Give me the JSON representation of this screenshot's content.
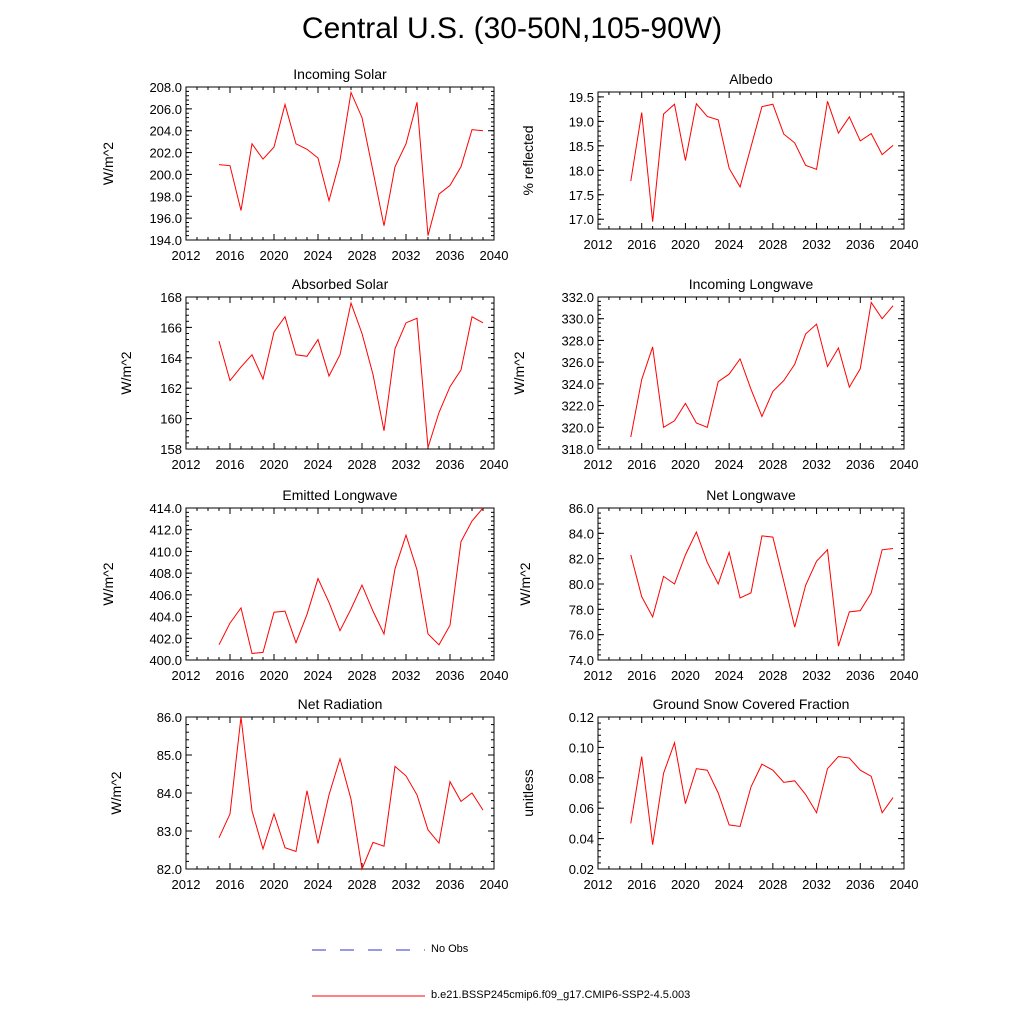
{
  "page": {
    "title": "Central U.S. (30-50N,105-90W)"
  },
  "colors": {
    "model": "#ff0000",
    "obs": "#3333cc",
    "axes": "#000000"
  },
  "legend": {
    "items": [
      {
        "label": "No Obs",
        "color": "#3333cc",
        "style": "dashed"
      },
      {
        "label": "b.e21.BSSP245cmip6.f09_g17.CMIP6-SSP2-4.5.003",
        "color": "#ff0000",
        "style": "solid"
      }
    ]
  },
  "chart_data": [
    {
      "type": "line",
      "title": "Incoming Solar",
      "xlabel": "",
      "ylabel": "W/m^2",
      "xlim": [
        2012,
        2040
      ],
      "ylim": [
        194,
        208
      ],
      "xticks": [
        2012,
        2016,
        2020,
        2024,
        2028,
        2032,
        2036,
        2040
      ],
      "yticks": [
        "194.0",
        "196.0",
        "198.0",
        "200.0",
        "202.0",
        "204.0",
        "206.0",
        "208.0"
      ],
      "x": [
        2015,
        2016,
        2017,
        2018,
        2019,
        2020,
        2021,
        2022,
        2023,
        2024,
        2025,
        2026,
        2027,
        2028,
        2029,
        2030,
        2031,
        2032,
        2033,
        2034,
        2035,
        2036,
        2037,
        2038,
        2039
      ],
      "series": [
        {
          "name": "b.e21.BSSP245cmip6.f09_g17.CMIP6-SSP2-4.5.003",
          "values": [
            200.9,
            200.8,
            196.7,
            202.8,
            201.4,
            202.5,
            206.4,
            202.8,
            202.3,
            201.5,
            197.6,
            201.3,
            207.5,
            205.2,
            200.3,
            195.3,
            200.7,
            202.8,
            206.6,
            194.4,
            198.2,
            199.0,
            200.7,
            204.1,
            204.0
          ]
        }
      ]
    },
    {
      "type": "line",
      "title": "Albedo",
      "xlabel": "",
      "ylabel": "% reflected",
      "xlim": [
        2012,
        2040
      ],
      "ylim": [
        16.8,
        19.6
      ],
      "xticks": [
        2012,
        2016,
        2020,
        2024,
        2028,
        2032,
        2036,
        2040
      ],
      "yticks": [
        "17.0",
        "17.5",
        "18.0",
        "18.5",
        "19.0",
        "19.5"
      ],
      "x": [
        2015,
        2016,
        2017,
        2018,
        2019,
        2020,
        2021,
        2022,
        2023,
        2024,
        2025,
        2026,
        2027,
        2028,
        2029,
        2030,
        2031,
        2032,
        2033,
        2034,
        2035,
        2036,
        2037,
        2038,
        2039
      ],
      "series": [
        {
          "name": "b.e21.BSSP245cmip6.f09_g17.CMIP6-SSP2-4.5.003",
          "values": [
            17.78,
            19.18,
            16.95,
            19.15,
            19.35,
            18.2,
            19.36,
            19.1,
            19.03,
            18.04,
            17.66,
            18.48,
            19.3,
            19.35,
            18.74,
            18.56,
            18.1,
            18.02,
            19.41,
            18.76,
            19.09,
            18.6,
            18.75,
            18.32,
            18.51
          ]
        }
      ]
    },
    {
      "type": "line",
      "title": "Absorbed Solar",
      "xlabel": "",
      "ylabel": "W/m^2",
      "xlim": [
        2012,
        2040
      ],
      "ylim": [
        158,
        168
      ],
      "xticks": [
        2012,
        2016,
        2020,
        2024,
        2028,
        2032,
        2036,
        2040
      ],
      "yticks": [
        "158",
        "160",
        "162",
        "164",
        "166",
        "168"
      ],
      "x": [
        2015,
        2016,
        2017,
        2018,
        2019,
        2020,
        2021,
        2022,
        2023,
        2024,
        2025,
        2026,
        2027,
        2028,
        2029,
        2030,
        2031,
        2032,
        2033,
        2034,
        2035,
        2036,
        2037,
        2038,
        2039
      ],
      "series": [
        {
          "name": "b.e21.BSSP245cmip6.f09_g17.CMIP6-SSP2-4.5.003",
          "values": [
            165.1,
            162.5,
            163.4,
            164.2,
            162.6,
            165.7,
            166.7,
            164.2,
            164.1,
            165.2,
            162.8,
            164.2,
            167.6,
            165.6,
            162.9,
            159.2,
            164.6,
            166.3,
            166.6,
            158.1,
            160.4,
            162.1,
            163.2,
            166.7,
            166.3
          ]
        }
      ]
    },
    {
      "type": "line",
      "title": "Incoming Longwave",
      "xlabel": "",
      "ylabel": "W/m^2",
      "xlim": [
        2012,
        2040
      ],
      "ylim": [
        318,
        332
      ],
      "xticks": [
        2012,
        2016,
        2020,
        2024,
        2028,
        2032,
        2036,
        2040
      ],
      "yticks": [
        "318.0",
        "320.0",
        "322.0",
        "324.0",
        "326.0",
        "328.0",
        "330.0",
        "332.0"
      ],
      "x": [
        2015,
        2016,
        2017,
        2018,
        2019,
        2020,
        2021,
        2022,
        2023,
        2024,
        2025,
        2026,
        2027,
        2028,
        2029,
        2030,
        2031,
        2032,
        2033,
        2034,
        2035,
        2036,
        2037,
        2038,
        2039
      ],
      "series": [
        {
          "name": "b.e21.BSSP245cmip6.f09_g17.CMIP6-SSP2-4.5.003",
          "values": [
            319.1,
            324.4,
            327.4,
            320.0,
            320.6,
            322.2,
            320.4,
            320.0,
            324.2,
            324.9,
            326.3,
            323.5,
            321.0,
            323.3,
            324.3,
            325.8,
            328.6,
            329.5,
            325.6,
            327.3,
            323.7,
            325.4,
            331.5,
            330.0,
            331.2
          ]
        }
      ]
    },
    {
      "type": "line",
      "title": "Emitted Longwave",
      "xlabel": "",
      "ylabel": "W/m^2",
      "xlim": [
        2012,
        2040
      ],
      "ylim": [
        400,
        414
      ],
      "xticks": [
        2012,
        2016,
        2020,
        2024,
        2028,
        2032,
        2036,
        2040
      ],
      "yticks": [
        "400.0",
        "402.0",
        "404.0",
        "406.0",
        "408.0",
        "410.0",
        "412.0",
        "414.0"
      ],
      "x": [
        2015,
        2016,
        2017,
        2018,
        2019,
        2020,
        2021,
        2022,
        2023,
        2024,
        2025,
        2026,
        2027,
        2028,
        2029,
        2030,
        2031,
        2032,
        2033,
        2034,
        2035,
        2036,
        2037,
        2038,
        2039
      ],
      "series": [
        {
          "name": "b.e21.BSSP245cmip6.f09_g17.CMIP6-SSP2-4.5.003",
          "values": [
            401.4,
            403.4,
            404.8,
            400.6,
            400.7,
            404.4,
            404.5,
            401.6,
            404.2,
            407.5,
            405.3,
            402.7,
            404.7,
            406.9,
            404.5,
            402.4,
            408.4,
            411.5,
            408.3,
            402.4,
            401.4,
            403.2,
            410.9,
            412.8,
            414.0
          ]
        }
      ]
    },
    {
      "type": "line",
      "title": "Net Longwave",
      "xlabel": "",
      "ylabel": "W/m^2",
      "xlim": [
        2012,
        2040
      ],
      "ylim": [
        74,
        86
      ],
      "xticks": [
        2012,
        2016,
        2020,
        2024,
        2028,
        2032,
        2036,
        2040
      ],
      "yticks": [
        "74.0",
        "76.0",
        "78.0",
        "80.0",
        "82.0",
        "84.0",
        "86.0"
      ],
      "x": [
        2015,
        2016,
        2017,
        2018,
        2019,
        2020,
        2021,
        2022,
        2023,
        2024,
        2025,
        2026,
        2027,
        2028,
        2029,
        2030,
        2031,
        2032,
        2033,
        2034,
        2035,
        2036,
        2037,
        2038,
        2039
      ],
      "series": [
        {
          "name": "b.e21.BSSP245cmip6.f09_g17.CMIP6-SSP2-4.5.003",
          "values": [
            82.3,
            79.0,
            77.4,
            80.6,
            80.0,
            82.3,
            84.1,
            81.7,
            80.0,
            82.5,
            78.9,
            79.3,
            83.8,
            83.7,
            80.2,
            76.6,
            79.9,
            81.8,
            82.7,
            75.1,
            77.8,
            77.9,
            79.3,
            82.7,
            82.8
          ]
        }
      ]
    },
    {
      "type": "line",
      "title": "Net Radiation",
      "xlabel": "",
      "ylabel": "W/m^2",
      "xlim": [
        2012,
        2040
      ],
      "ylim": [
        82,
        86
      ],
      "xticks": [
        2012,
        2016,
        2020,
        2024,
        2028,
        2032,
        2036,
        2040
      ],
      "yticks": [
        "82.0",
        "83.0",
        "84.0",
        "85.0",
        "86.0"
      ],
      "x": [
        2015,
        2016,
        2017,
        2018,
        2019,
        2020,
        2021,
        2022,
        2023,
        2024,
        2025,
        2026,
        2027,
        2028,
        2029,
        2030,
        2031,
        2032,
        2033,
        2034,
        2035,
        2036,
        2037,
        2038,
        2039
      ],
      "series": [
        {
          "name": "b.e21.BSSP245cmip6.f09_g17.CMIP6-SSP2-4.5.003",
          "values": [
            82.82,
            83.45,
            86.0,
            83.53,
            82.53,
            83.45,
            82.56,
            82.46,
            84.06,
            82.67,
            83.95,
            84.9,
            83.84,
            82.0,
            82.7,
            82.6,
            84.7,
            84.45,
            83.95,
            83.03,
            82.68,
            84.3,
            83.78,
            84.0,
            83.55
          ]
        }
      ]
    },
    {
      "type": "line",
      "title": "Ground Snow Covered Fraction",
      "xlabel": "",
      "ylabel": "unitless",
      "xlim": [
        2012,
        2040
      ],
      "ylim": [
        0.02,
        0.12
      ],
      "xticks": [
        2012,
        2016,
        2020,
        2024,
        2028,
        2032,
        2036,
        2040
      ],
      "yticks": [
        "0.02",
        "0.04",
        "0.06",
        "0.08",
        "0.10",
        "0.12"
      ],
      "x": [
        2015,
        2016,
        2017,
        2018,
        2019,
        2020,
        2021,
        2022,
        2023,
        2024,
        2025,
        2026,
        2027,
        2028,
        2029,
        2030,
        2031,
        2032,
        2033,
        2034,
        2035,
        2036,
        2037,
        2038,
        2039
      ],
      "series": [
        {
          "name": "b.e21.BSSP245cmip6.f09_g17.CMIP6-SSP2-4.5.003",
          "values": [
            0.05,
            0.094,
            0.036,
            0.083,
            0.103,
            0.063,
            0.086,
            0.085,
            0.07,
            0.049,
            0.048,
            0.074,
            0.089,
            0.085,
            0.077,
            0.078,
            0.069,
            0.057,
            0.086,
            0.094,
            0.093,
            0.085,
            0.081,
            0.057,
            0.067
          ]
        }
      ]
    }
  ]
}
